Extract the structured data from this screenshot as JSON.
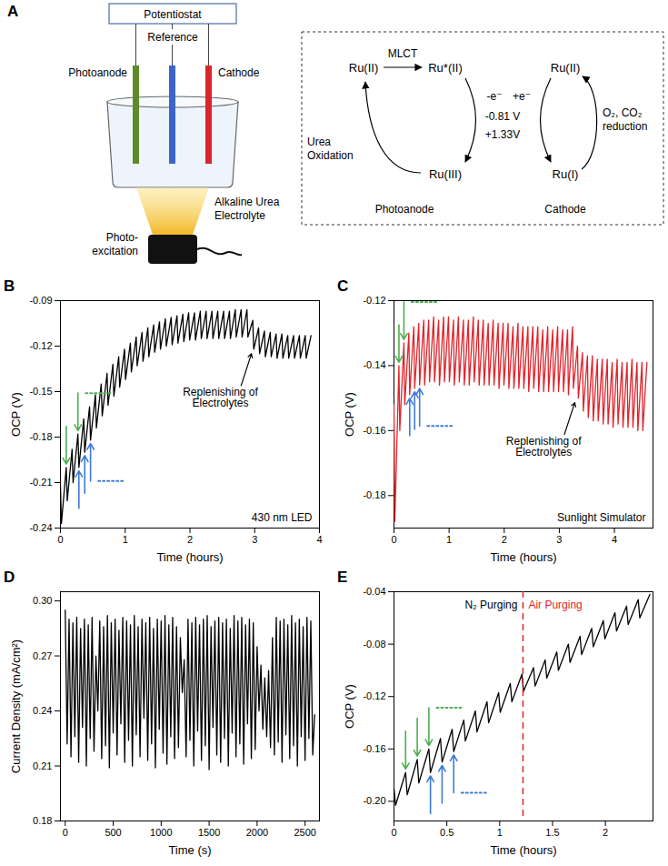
{
  "panel_a": {
    "panel": "A",
    "setup": {
      "potentiostat": "Potentiostat",
      "reference": "Reference",
      "photoanode": "Photoanode",
      "cathode": "Cathode",
      "light": [
        "Photo-",
        "excitation"
      ],
      "electrolyte": [
        "Alkaline Urea",
        "Electrolyte"
      ]
    },
    "cycle": {
      "ru_ii_anode": "Ru(II)",
      "excited": "Ru*(II)",
      "mlct": "MLCT",
      "ru_iii": "Ru(III)",
      "urea": [
        "Urea",
        "Oxidation"
      ],
      "electron_out": "-e⁻",
      "electron_in": "+e⁻",
      "anode_potential": "-0.81 V",
      "cathode_potential": "+1.33V",
      "ru_ii_cathode": "Ru(II)",
      "ru_i": "Ru(I)",
      "reduction": [
        "O₂, CO₂",
        "reduction"
      ],
      "anode_label": "Photoanode",
      "cathode_label": "Cathode"
    }
  },
  "chart_data": [
    {
      "panel": "B",
      "type": "line",
      "x_label": "Time (hours)",
      "y_label": "OCP (V)",
      "color": "#000000",
      "xlim": [
        0,
        4
      ],
      "xticks": [
        0,
        1,
        2,
        3,
        4
      ],
      "ylim": [
        -0.24,
        -0.09
      ],
      "yticks": [
        -0.24,
        -0.21,
        -0.18,
        -0.15,
        -0.12,
        -0.09
      ],
      "note": "430 nm LED",
      "annotation": {
        "x": 2.95,
        "text": [
          "Replenishing of",
          "Electrolytes"
        ]
      },
      "down_arrows_x": [
        0.09,
        0.27
      ],
      "up_arrows_x": [
        0.285,
        0.375,
        0.465
      ],
      "x": [
        0,
        0.015,
        0.09,
        0.105,
        0.18,
        0.195,
        0.27,
        0.285,
        0.36,
        0.375,
        0.45,
        0.465,
        0.54,
        0.555,
        0.63,
        0.645,
        0.72,
        0.735,
        0.81,
        0.825,
        0.9,
        0.915,
        0.99,
        1.005,
        1.08,
        1.095,
        1.17,
        1.185,
        1.26,
        1.275,
        1.35,
        1.365,
        1.44,
        1.455,
        1.53,
        1.545,
        1.62,
        1.635,
        1.71,
        1.725,
        1.8,
        1.815,
        1.89,
        1.905,
        1.98,
        1.995,
        2.07,
        2.085,
        2.16,
        2.175,
        2.25,
        2.265,
        2.34,
        2.355,
        2.43,
        2.445,
        2.52,
        2.535,
        2.61,
        2.625,
        2.7,
        2.715,
        2.79,
        2.805,
        2.88,
        2.895,
        2.97,
        2.985,
        3.06,
        3.075,
        3.15,
        3.165,
        3.24,
        3.255,
        3.33,
        3.345,
        3.42,
        3.435,
        3.51,
        3.525,
        3.6,
        3.615,
        3.69,
        3.705,
        3.78,
        3.795,
        3.87
      ],
      "values": [
        -0.212,
        -0.237,
        -0.2,
        -0.222,
        -0.188,
        -0.21,
        -0.178,
        -0.2,
        -0.168,
        -0.19,
        -0.16,
        -0.182,
        -0.152,
        -0.174,
        -0.145,
        -0.166,
        -0.138,
        -0.159,
        -0.132,
        -0.153,
        -0.127,
        -0.147,
        -0.122,
        -0.142,
        -0.118,
        -0.137,
        -0.114,
        -0.133,
        -0.111,
        -0.13,
        -0.108,
        -0.127,
        -0.106,
        -0.124,
        -0.104,
        -0.122,
        -0.102,
        -0.12,
        -0.101,
        -0.119,
        -0.1,
        -0.118,
        -0.099,
        -0.117,
        -0.098,
        -0.116,
        -0.098,
        -0.116,
        -0.097,
        -0.115,
        -0.097,
        -0.115,
        -0.097,
        -0.115,
        -0.097,
        -0.115,
        -0.097,
        -0.115,
        -0.097,
        -0.115,
        -0.096,
        -0.114,
        -0.096,
        -0.114,
        -0.096,
        -0.114,
        -0.103,
        -0.122,
        -0.108,
        -0.125,
        -0.11,
        -0.127,
        -0.111,
        -0.127,
        -0.112,
        -0.128,
        -0.112,
        -0.128,
        -0.113,
        -0.128,
        -0.113,
        -0.128,
        -0.113,
        -0.128,
        -0.113,
        -0.128,
        -0.113
      ]
    },
    {
      "panel": "C",
      "type": "line",
      "x_label": "Time (hours)",
      "y_label": "OCP (V)",
      "color": "#e0242b",
      "xlim": [
        0,
        4.7
      ],
      "xticks": [
        0,
        1,
        2,
        3,
        4
      ],
      "ylim": [
        -0.19,
        -0.12
      ],
      "yticks": [
        -0.18,
        -0.16,
        -0.14,
        -0.12
      ],
      "note": "Sunlight Simulator",
      "annotation": {
        "x": 3.28,
        "text": [
          "Replenishing of",
          "Electrolytes"
        ]
      },
      "down_arrows_x": [
        0.09,
        0.18
      ],
      "up_arrows_x": [
        0.285,
        0.375,
        0.465
      ],
      "x": [
        0,
        0.015,
        0.09,
        0.105,
        0.18,
        0.195,
        0.27,
        0.285,
        0.36,
        0.375,
        0.45,
        0.465,
        0.54,
        0.555,
        0.63,
        0.645,
        0.72,
        0.735,
        0.81,
        0.825,
        0.9,
        0.915,
        0.99,
        1.005,
        1.08,
        1.095,
        1.17,
        1.185,
        1.26,
        1.275,
        1.35,
        1.365,
        1.44,
        1.455,
        1.53,
        1.545,
        1.62,
        1.635,
        1.71,
        1.725,
        1.8,
        1.815,
        1.89,
        1.905,
        1.98,
        1.995,
        2.07,
        2.085,
        2.16,
        2.175,
        2.25,
        2.265,
        2.34,
        2.355,
        2.43,
        2.445,
        2.52,
        2.535,
        2.61,
        2.625,
        2.7,
        2.715,
        2.79,
        2.805,
        2.88,
        2.895,
        2.97,
        2.985,
        3.06,
        3.075,
        3.15,
        3.165,
        3.24,
        3.255,
        3.33,
        3.345,
        3.42,
        3.435,
        3.51,
        3.525,
        3.6,
        3.615,
        3.69,
        3.705,
        3.78,
        3.795,
        3.87,
        3.885,
        3.96,
        3.975,
        4.05,
        4.065,
        4.14,
        4.155,
        4.23,
        4.245,
        4.32,
        4.335,
        4.41,
        4.425,
        4.5,
        4.515,
        4.59
      ],
      "values": [
        -0.152,
        -0.188,
        -0.14,
        -0.16,
        -0.133,
        -0.152,
        -0.13,
        -0.149,
        -0.128,
        -0.147,
        -0.127,
        -0.146,
        -0.126,
        -0.146,
        -0.126,
        -0.145,
        -0.125,
        -0.145,
        -0.126,
        -0.146,
        -0.125,
        -0.145,
        -0.125,
        -0.145,
        -0.126,
        -0.146,
        -0.125,
        -0.145,
        -0.126,
        -0.146,
        -0.126,
        -0.146,
        -0.125,
        -0.145,
        -0.126,
        -0.146,
        -0.126,
        -0.146,
        -0.127,
        -0.146,
        -0.126,
        -0.146,
        -0.127,
        -0.147,
        -0.127,
        -0.146,
        -0.127,
        -0.147,
        -0.128,
        -0.147,
        -0.127,
        -0.147,
        -0.128,
        -0.147,
        -0.128,
        -0.148,
        -0.128,
        -0.147,
        -0.128,
        -0.148,
        -0.129,
        -0.148,
        -0.128,
        -0.148,
        -0.129,
        -0.148,
        -0.128,
        -0.148,
        -0.129,
        -0.148,
        -0.129,
        -0.149,
        -0.128,
        -0.147,
        -0.134,
        -0.15,
        -0.136,
        -0.154,
        -0.137,
        -0.156,
        -0.137,
        -0.157,
        -0.138,
        -0.157,
        -0.138,
        -0.158,
        -0.138,
        -0.158,
        -0.139,
        -0.159,
        -0.138,
        -0.158,
        -0.139,
        -0.159,
        -0.139,
        -0.159,
        -0.138,
        -0.159,
        -0.139,
        -0.16,
        -0.139,
        -0.16,
        -0.139
      ]
    },
    {
      "panel": "D",
      "type": "line",
      "x_label": "Time (s)",
      "y_label": "Current Density (mA/cm²)",
      "color": "#000000",
      "xlim": [
        -50,
        2650
      ],
      "xticks": [
        0,
        500,
        1000,
        1500,
        2000,
        2500
      ],
      "ylim": [
        0.18,
        0.305
      ],
      "yticks": [
        0.18,
        0.21,
        0.24,
        0.27,
        {
          "value": 0.3,
          "label": "0.30"
        }
      ],
      "x": [
        0,
        20,
        40,
        60,
        80,
        100,
        120,
        140,
        160,
        180,
        200,
        220,
        240,
        260,
        280,
        300,
        320,
        340,
        360,
        380,
        400,
        420,
        440,
        460,
        480,
        500,
        520,
        540,
        560,
        580,
        600,
        620,
        640,
        660,
        680,
        700,
        720,
        740,
        760,
        780,
        800,
        820,
        840,
        860,
        880,
        900,
        920,
        940,
        960,
        980,
        1000,
        1020,
        1040,
        1060,
        1080,
        1100,
        1120,
        1140,
        1160,
        1180,
        1200,
        1220,
        1240,
        1260,
        1280,
        1300,
        1320,
        1340,
        1360,
        1380,
        1400,
        1420,
        1440,
        1460,
        1480,
        1500,
        1520,
        1540,
        1560,
        1580,
        1600,
        1620,
        1640,
        1660,
        1680,
        1700,
        1720,
        1740,
        1760,
        1780,
        1800,
        1820,
        1840,
        1860,
        1880,
        1900,
        1920,
        1940,
        1960,
        1980,
        2000,
        2020,
        2040,
        2060,
        2080,
        2100,
        2120,
        2140,
        2160,
        2180,
        2200,
        2220,
        2240,
        2260,
        2280,
        2300,
        2320,
        2340,
        2360,
        2380,
        2400,
        2420,
        2440,
        2460,
        2480,
        2500,
        2520,
        2540,
        2560,
        2580,
        2600
      ],
      "values": [
        0.295,
        0.222,
        0.29,
        0.215,
        0.288,
        0.226,
        0.291,
        0.212,
        0.285,
        0.231,
        0.29,
        0.21,
        0.287,
        0.225,
        0.291,
        0.218,
        0.27,
        0.24,
        0.289,
        0.214,
        0.286,
        0.221,
        0.292,
        0.209,
        0.288,
        0.228,
        0.29,
        0.216,
        0.284,
        0.233,
        0.291,
        0.212,
        0.289,
        0.224,
        0.287,
        0.21,
        0.292,
        0.227,
        0.286,
        0.215,
        0.29,
        0.236,
        0.288,
        0.213,
        0.291,
        0.222,
        0.285,
        0.209,
        0.29,
        0.23,
        0.289,
        0.217,
        0.292,
        0.211,
        0.287,
        0.226,
        0.291,
        0.214,
        0.286,
        0.22,
        0.28,
        0.25,
        0.268,
        0.215,
        0.29,
        0.224,
        0.288,
        0.21,
        0.291,
        0.229,
        0.287,
        0.213,
        0.29,
        0.221,
        0.292,
        0.208,
        0.286,
        0.231,
        0.289,
        0.216,
        0.291,
        0.212,
        0.288,
        0.225,
        0.29,
        0.21,
        0.285,
        0.228,
        0.292,
        0.215,
        0.289,
        0.222,
        0.291,
        0.211,
        0.287,
        0.233,
        0.29,
        0.214,
        0.288,
        0.219,
        0.275,
        0.24,
        0.265,
        0.23,
        0.258,
        0.226,
        0.262,
        0.22,
        0.28,
        0.216,
        0.291,
        0.223,
        0.289,
        0.212,
        0.29,
        0.227,
        0.287,
        0.214,
        0.292,
        0.221,
        0.288,
        0.21,
        0.29,
        0.226,
        0.286,
        0.213,
        0.291,
        0.225,
        0.289,
        0.216,
        0.238
      ]
    },
    {
      "panel": "E",
      "type": "line",
      "x_label": "Time (hours)",
      "y_label": "OCP (V)",
      "color": "#000000",
      "xlim": [
        0,
        2.45
      ],
      "xticks": [
        0,
        0.5,
        1,
        1.5,
        2
      ],
      "ylim": [
        -0.215,
        -0.04
      ],
      "yticks": [
        {
          "value": -0.2,
          "label": "-0.20"
        },
        -0.16,
        -0.12,
        -0.08,
        -0.04
      ],
      "divider": {
        "x": 1.22,
        "color": "#e0242b",
        "left_label": "N₂ Purging",
        "right_label": "Air Purging"
      },
      "down_arrows_x": [
        0.11,
        0.22,
        0.33
      ],
      "up_arrows_x": [
        0.345,
        0.455,
        0.565
      ],
      "x": [
        0,
        0.015,
        0.11,
        0.125,
        0.22,
        0.235,
        0.33,
        0.345,
        0.44,
        0.455,
        0.55,
        0.565,
        0.66,
        0.675,
        0.77,
        0.785,
        0.88,
        0.895,
        0.99,
        1.005,
        1.1,
        1.115,
        1.21,
        1.225,
        1.32,
        1.335,
        1.43,
        1.445,
        1.54,
        1.555,
        1.65,
        1.665,
        1.76,
        1.775,
        1.87,
        1.885,
        1.98,
        1.995,
        2.09,
        2.105,
        2.2,
        2.215,
        2.31,
        2.325,
        2.42
      ],
      "values": [
        -0.19,
        -0.203,
        -0.178,
        -0.195,
        -0.168,
        -0.186,
        -0.16,
        -0.178,
        -0.152,
        -0.17,
        -0.145,
        -0.162,
        -0.138,
        -0.154,
        -0.131,
        -0.147,
        -0.124,
        -0.14,
        -0.117,
        -0.132,
        -0.11,
        -0.124,
        -0.103,
        -0.116,
        -0.098,
        -0.112,
        -0.092,
        -0.106,
        -0.086,
        -0.1,
        -0.08,
        -0.094,
        -0.074,
        -0.088,
        -0.068,
        -0.082,
        -0.062,
        -0.076,
        -0.056,
        -0.07,
        -0.051,
        -0.065,
        -0.046,
        -0.06,
        -0.042
      ]
    }
  ]
}
